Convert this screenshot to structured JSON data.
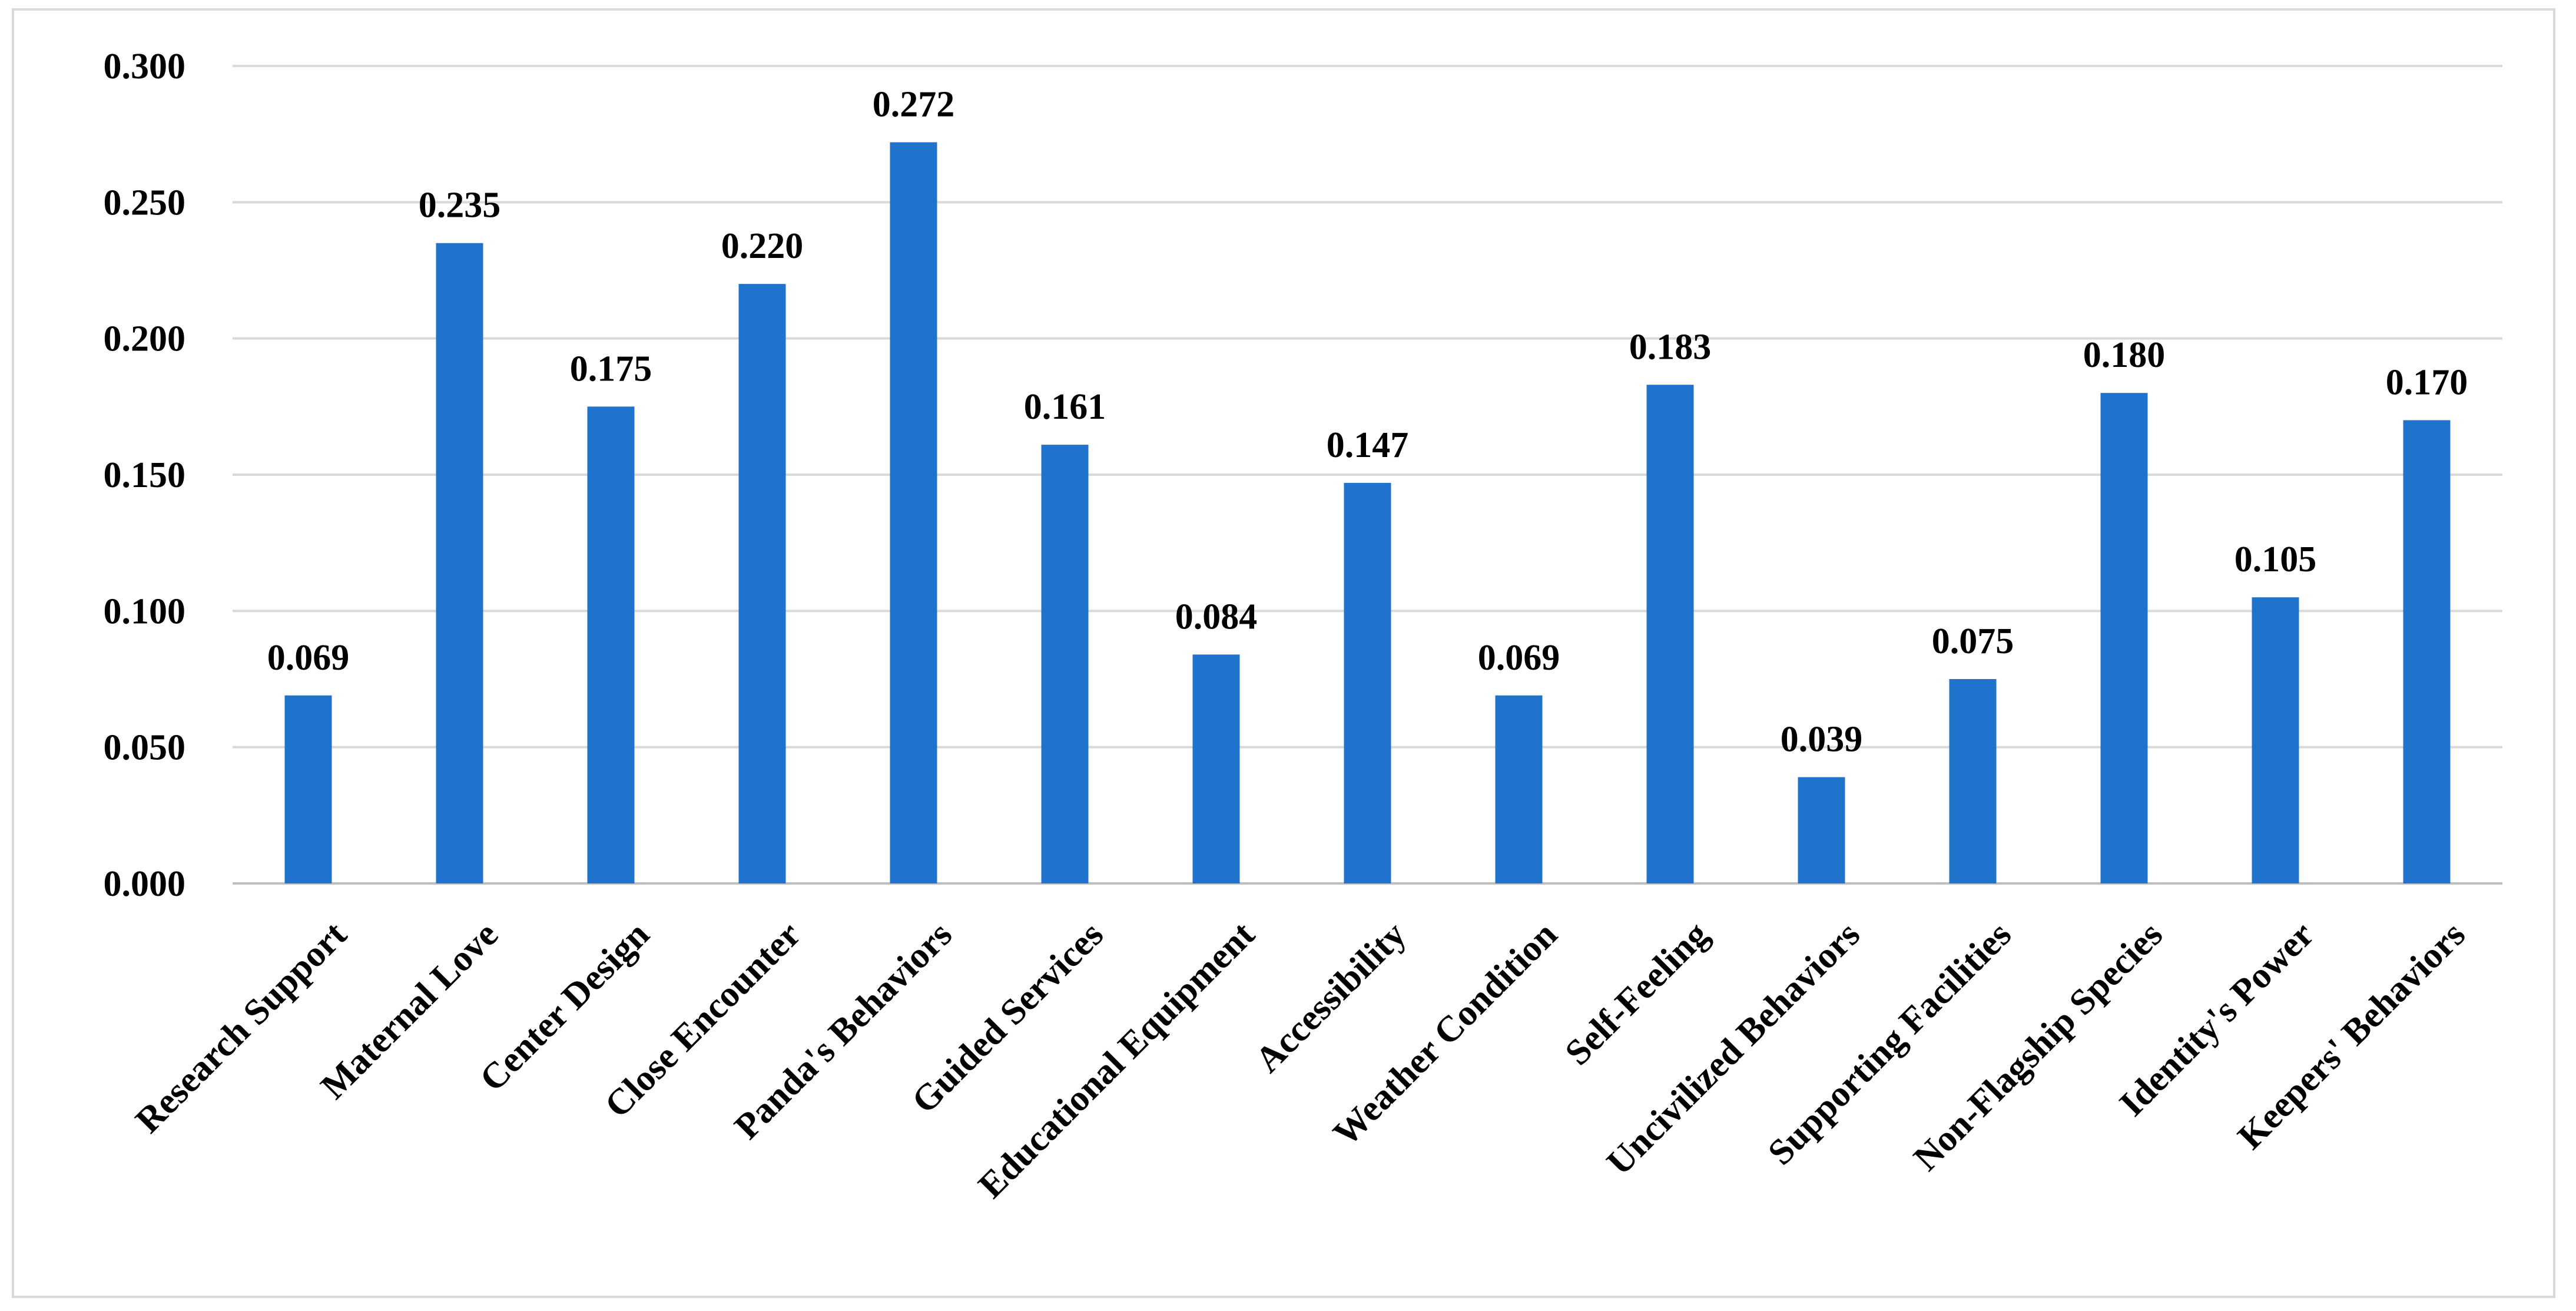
{
  "chart_data": {
    "type": "bar",
    "title": "",
    "xlabel": "",
    "ylabel": "",
    "ylim": [
      0,
      0.3
    ],
    "yticks": [
      "0.000",
      "0.050",
      "0.100",
      "0.150",
      "0.200",
      "0.250",
      "0.300"
    ],
    "grid": true,
    "legend": "none",
    "bar_color": "#1f73cc",
    "categories": [
      "Research Support",
      "Maternal Love",
      "Center Design",
      "Close Encounter",
      "Panda's Behaviors",
      "Guided Services",
      "Educational Equipment",
      "Accessibility",
      "Weather Condition",
      "Self-Feeling",
      "Uncivilized Behaviors",
      "Supporting Facilities",
      "Non-Flagship Species",
      "Identity's Power",
      "Keepers' Behaviors"
    ],
    "values": [
      0.069,
      0.235,
      0.175,
      0.22,
      0.272,
      0.161,
      0.084,
      0.147,
      0.069,
      0.183,
      0.039,
      0.075,
      0.18,
      0.105,
      0.17
    ],
    "data_labels": [
      "0.069",
      "0.235",
      "0.175",
      "0.220",
      "0.272",
      "0.161",
      "0.084",
      "0.147",
      "0.069",
      "0.183",
      "0.039",
      "0.075",
      "0.180",
      "0.105",
      "0.170"
    ]
  }
}
